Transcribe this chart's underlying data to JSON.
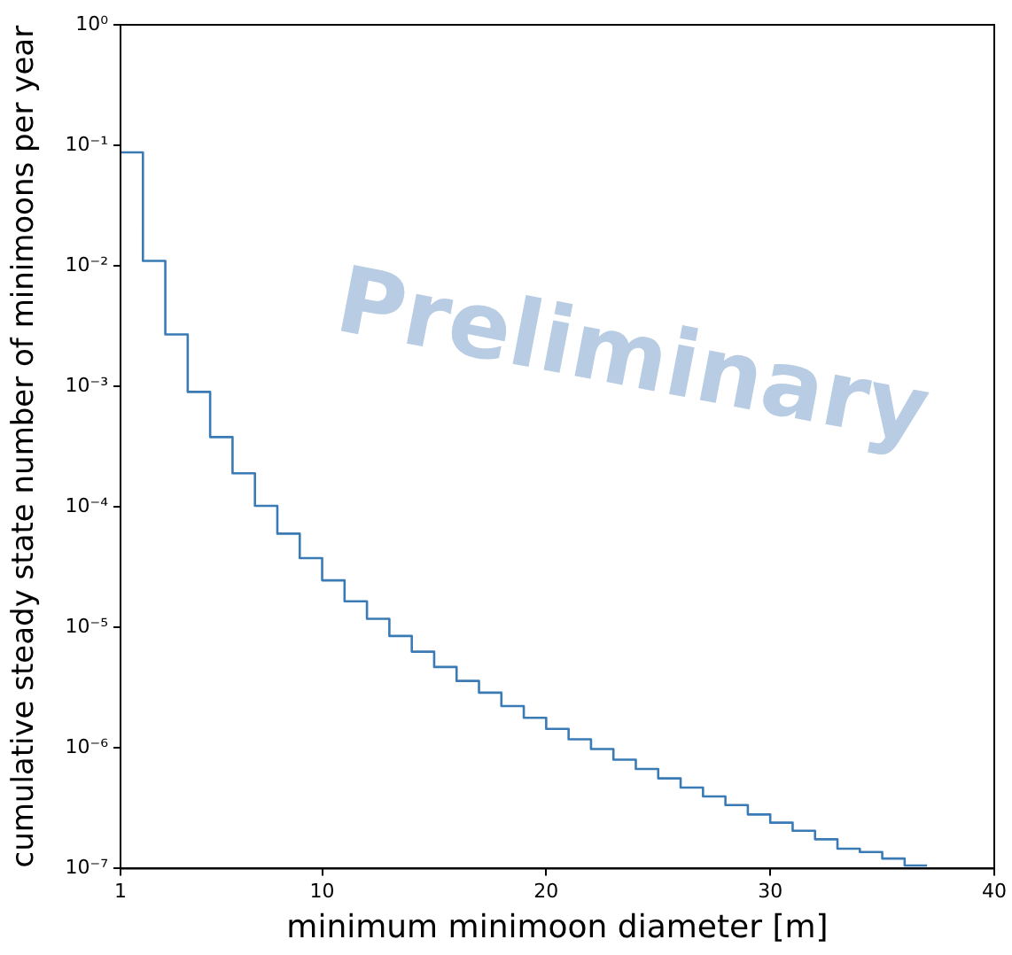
{
  "chart_data": {
    "type": "histogram",
    "xlabel": "minimum minimoon diameter [m]",
    "ylabel": "cumulative steady state number of minimoons per year",
    "annotations": [
      "Preliminary"
    ],
    "bins": [
      1,
      2,
      3,
      4,
      5,
      6,
      7,
      8,
      9,
      10,
      11,
      12,
      13,
      14,
      15,
      16,
      17,
      18,
      19,
      20,
      21,
      22,
      23,
      24,
      25,
      26,
      27,
      28,
      29,
      30,
      31,
      32,
      33,
      34,
      35,
      36,
      37
    ],
    "values": [
      0.0875,
      0.011,
      0.0027,
      0.0009,
      0.00038,
      0.00019,
      0.000102,
      6e-05,
      3.76e-05,
      2.46e-05,
      1.65e-05,
      1.18e-05,
      8.5e-06,
      6.3e-06,
      4.7e-06,
      3.6e-06,
      2.88e-06,
      2.23e-06,
      1.78e-06,
      1.44e-06,
      1.18e-06,
      9.8e-07,
      8e-07,
      6.7e-07,
      5.6e-07,
      4.7e-07,
      3.97e-07,
      3.36e-07,
      2.81e-07,
      2.4e-07,
      2.06e-07,
      1.75e-07,
      1.46e-07,
      1.37e-07,
      1.21e-07,
      1.06e-07
    ],
    "color": "#3a7bb5",
    "log": "y",
    "grid": false,
    "xlim": [
      1,
      40
    ],
    "xticks": [
      1,
      10,
      20,
      30,
      40
    ],
    "ylim": [
      1e-07,
      1
    ],
    "yticks": [
      {
        "value": 1e-07,
        "label": "10⁻⁷"
      },
      {
        "value": 1e-06,
        "label": "10⁻⁶"
      },
      {
        "value": 1e-05,
        "label": "10⁻⁵"
      },
      {
        "value": 0.0001,
        "label": "10⁻⁴"
      },
      {
        "value": 0.001,
        "label": "10⁻³"
      },
      {
        "value": 0.01,
        "label": "10⁻²"
      },
      {
        "value": 0.1,
        "label": "10⁻¹"
      },
      {
        "value": 1,
        "label": "10⁰"
      }
    ]
  }
}
